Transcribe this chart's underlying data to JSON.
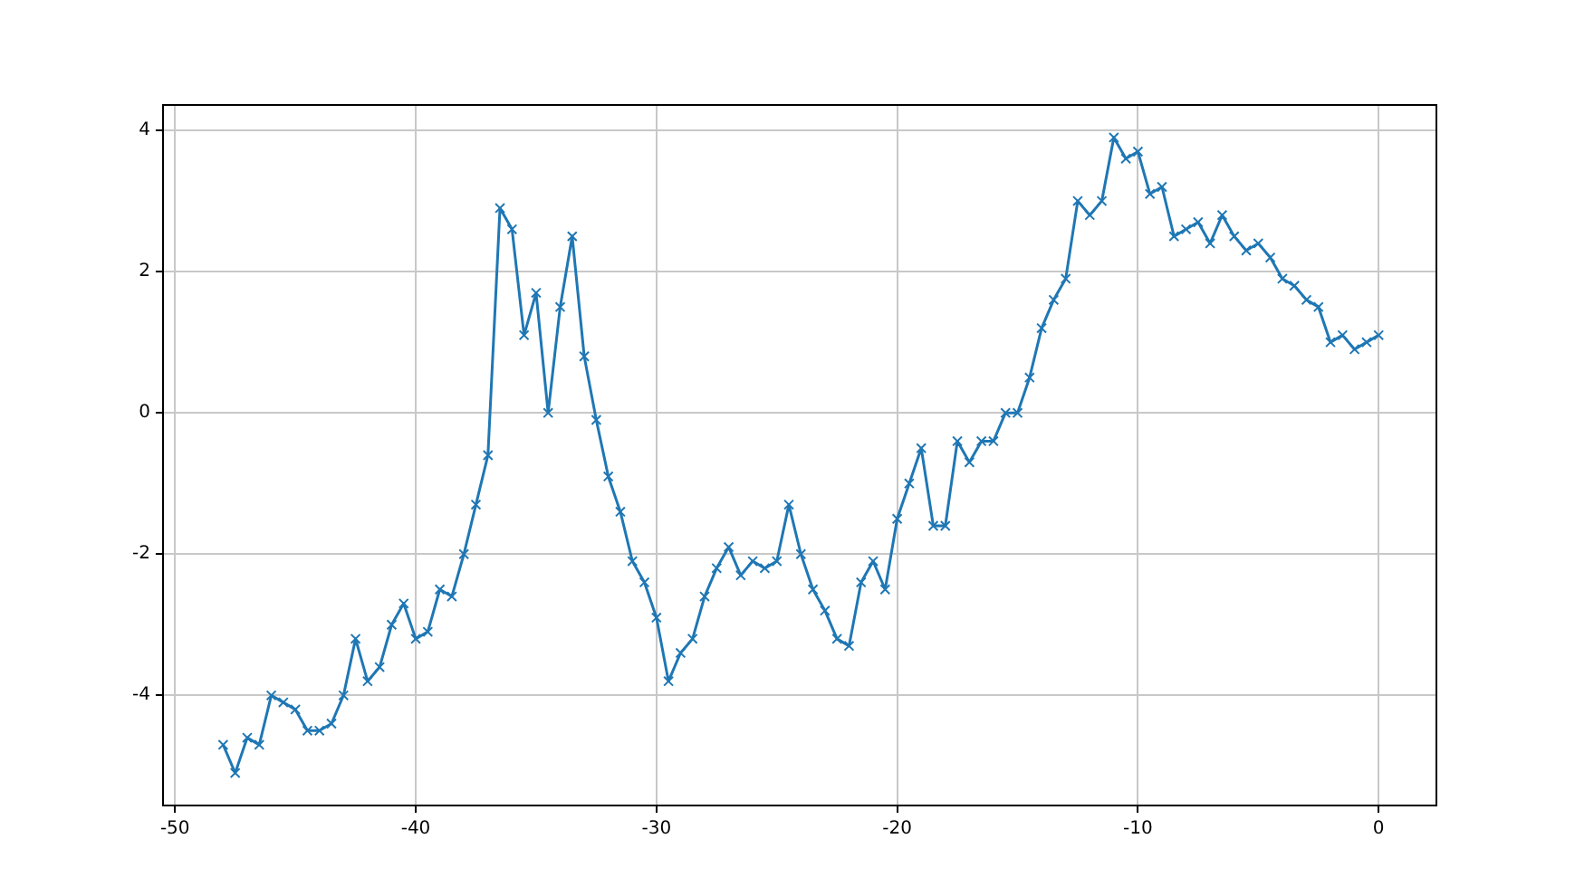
{
  "chart_data": {
    "type": "line",
    "x": [
      -48,
      -47.5,
      -47,
      -46.5,
      -46,
      -45.5,
      -45,
      -44.5,
      -44,
      -43.5,
      -43,
      -42.5,
      -42,
      -41.5,
      -41,
      -40.5,
      -40,
      -39.5,
      -39,
      -38.5,
      -38,
      -37.5,
      -37,
      -36.5,
      -36,
      -35.5,
      -35,
      -34.5,
      -34,
      -33.5,
      -33,
      -32.5,
      -32,
      -31.5,
      -31,
      -30.5,
      -30,
      -29.5,
      -29,
      -28.5,
      -28,
      -27.5,
      -27,
      -26.5,
      -26,
      -25.5,
      -25,
      -24.5,
      -24,
      -23.5,
      -23,
      -22.5,
      -22,
      -21.5,
      -21,
      -20.5,
      -20,
      -19.5,
      -19,
      -18.5,
      -18,
      -17.5,
      -17,
      -16.5,
      -16,
      -15.5,
      -15,
      -14.5,
      -14,
      -13.5,
      -13,
      -12.5,
      -12,
      -11.5,
      -11,
      -10.5,
      -10,
      -9.5,
      -9,
      -8.5,
      -8,
      -7.5,
      -7,
      -6.5,
      -6,
      -5.5,
      -5,
      -4.5,
      -4,
      -3.5,
      -3,
      -2.5,
      -2,
      -1.5,
      -1,
      -0.5,
      0
    ],
    "series": [
      {
        "color": "#1f77b4",
        "values": [
          -4.7,
          -5.1,
          -4.6,
          -4.7,
          -4.0,
          -4.1,
          -4.2,
          -4.5,
          -4.5,
          -4.4,
          -4.0,
          -3.2,
          -3.8,
          -3.6,
          -3.0,
          -2.7,
          -3.2,
          -3.1,
          -2.5,
          -2.6,
          -2.0,
          -1.3,
          -0.6,
          2.9,
          2.6,
          1.1,
          1.7,
          0.0,
          1.5,
          2.5,
          0.8,
          -0.1,
          -0.9,
          -1.4,
          -2.1,
          -2.4,
          -2.9,
          -3.8,
          -3.4,
          -3.2,
          -2.6,
          -2.2,
          -1.9,
          -2.3,
          -2.1,
          -2.2,
          -2.1,
          -1.3,
          -2.0,
          -2.5,
          -2.8,
          -3.2,
          -3.3,
          -2.4,
          -2.1,
          -2.5,
          -1.5,
          -1.0,
          -0.5,
          -1.6,
          -1.6,
          -0.4,
          -0.7,
          -0.4,
          -0.4,
          0.0,
          0.0,
          0.5,
          1.2,
          1.6,
          1.9,
          3.0,
          2.8,
          3.0,
          3.9,
          3.6,
          3.7,
          3.1,
          3.2,
          2.5,
          2.6,
          2.7,
          2.4,
          2.8,
          2.5,
          2.3,
          2.4,
          2.2,
          1.9,
          1.8,
          1.6,
          1.5,
          1.0,
          1.1,
          0.9,
          1.0,
          1.1
        ]
      }
    ],
    "xlim": [
      -50.5,
      2.4
    ],
    "xticks": [
      -50,
      -40,
      -30,
      -20,
      -10,
      0
    ],
    "ylim": [
      -5.56,
      4.36
    ],
    "yticks": [
      -4,
      -2,
      0,
      2,
      4
    ],
    "grid": true,
    "marker": "cross",
    "line_style": "solid"
  }
}
